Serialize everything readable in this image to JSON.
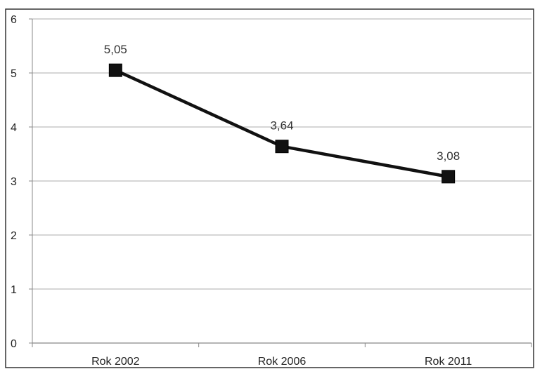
{
  "chart_data": {
    "type": "line",
    "categories": [
      "Rok 2002",
      "Rok 2006",
      "Rok 2011"
    ],
    "series": [
      {
        "values": [
          5.05,
          3.64,
          3.08
        ],
        "labels": [
          "5,05",
          "3,64",
          "3,08"
        ]
      }
    ],
    "y_ticks": [
      "0",
      "1",
      "2",
      "3",
      "4",
      "5",
      "6"
    ],
    "ylim": [
      0,
      6
    ],
    "grid": true,
    "marker": "square",
    "line_color": "#111111",
    "grid_color": "#bdbdbd",
    "frame_color": "#333333"
  }
}
